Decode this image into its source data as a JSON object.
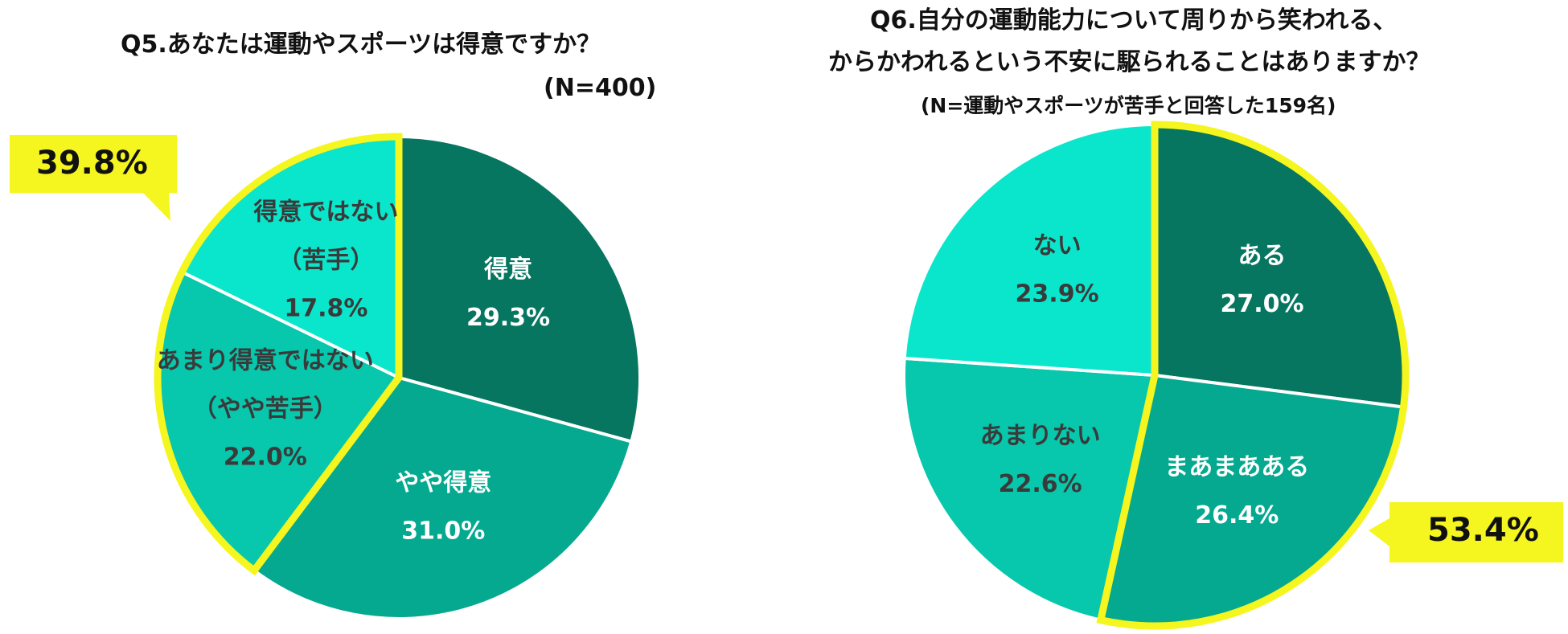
{
  "charts": {
    "q5": {
      "title": "Q5.あなたは運動やスポーツは得意ですか？",
      "sample": "(N=400)",
      "callout": "39.8%"
    },
    "q6": {
      "title_line1": "Q6.自分の運動能力について周りから笑われる、",
      "title_line2": "からかわれるという不安に駆られることはありますか？",
      "sample": "(N=運動やスポーツが苦手と回答した159名)",
      "callout": "53.4%"
    }
  },
  "chart_data": [
    {
      "type": "pie",
      "title": "Q5.あなたは運動やスポーツは得意ですか？",
      "slices": [
        {
          "label": [
            "得意"
          ],
          "value": 29.3,
          "pct": "29.3%",
          "color": "#067660",
          "text_color": "#ffffff",
          "highlight": false
        },
        {
          "label": [
            "やや得意"
          ],
          "value": 31.0,
          "pct": "31.0%",
          "color": "#05a990",
          "text_color": "#ffffff",
          "highlight": false
        },
        {
          "label": [
            "あまり得意ではない",
            "（やや苦手）"
          ],
          "value": 22.0,
          "pct": "22.0%",
          "color": "#07c7ac",
          "text_color": "#3a3a3a",
          "highlight": true
        },
        {
          "label": [
            "得意ではない",
            "（苦手）"
          ],
          "value": 17.8,
          "pct": "17.8%",
          "color": "#0ae6cc",
          "text_color": "#3a3a3a",
          "highlight": true
        }
      ],
      "highlight_total": "39.8%",
      "highlight_color": "#f5f520"
    },
    {
      "type": "pie",
      "title": "Q6.自分の運動能力について周りから笑われる、からかわれるという不安に駆られることはありますか？",
      "slices": [
        {
          "label": [
            "ある"
          ],
          "value": 27.0,
          "pct": "27.0%",
          "color": "#067660",
          "text_color": "#ffffff",
          "highlight": true
        },
        {
          "label": [
            "まあまあある"
          ],
          "value": 26.4,
          "pct": "26.4%",
          "color": "#05a990",
          "text_color": "#ffffff",
          "highlight": true
        },
        {
          "label": [
            "あまりない"
          ],
          "value": 22.6,
          "pct": "22.6%",
          "color": "#07c7ac",
          "text_color": "#3a3a3a",
          "highlight": false
        },
        {
          "label": [
            "ない"
          ],
          "value": 23.9,
          "pct": "23.9%",
          "color": "#0ae6cc",
          "text_color": "#3a3a3a",
          "highlight": false
        }
      ],
      "highlight_total": "53.4%",
      "highlight_color": "#f5f520"
    }
  ]
}
